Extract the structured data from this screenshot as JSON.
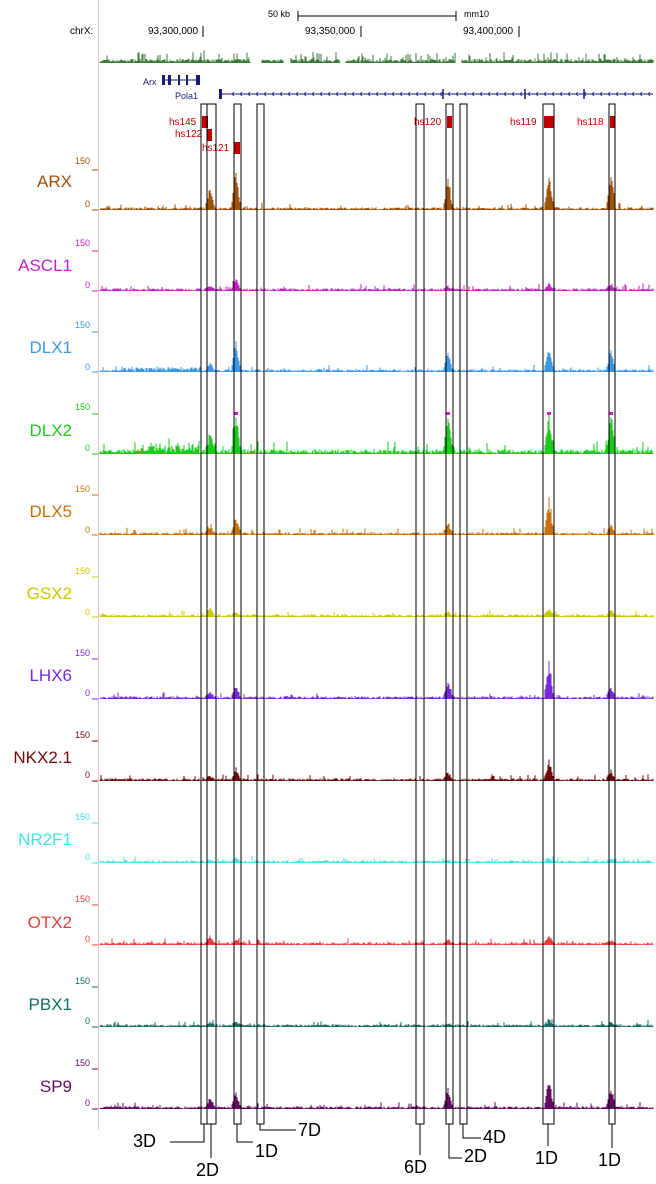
{
  "header": {
    "scale_label": "50 kb",
    "assembly": "mm10",
    "chrom_label": "chrX:",
    "coordinates": [
      {
        "label": "93,300,000",
        "pos": 93300000
      },
      {
        "label": "93,350,000",
        "pos": 93350000
      },
      {
        "label": "93,400,000",
        "pos": 93400000
      }
    ]
  },
  "genes": [
    {
      "name": "Arx"
    },
    {
      "name": "Pola1"
    }
  ],
  "enhancers": [
    {
      "name": "hs145",
      "color": "#c00000"
    },
    {
      "name": "hs122",
      "color": "#c00000"
    },
    {
      "name": "hs121",
      "color": "#c00000"
    },
    {
      "name": "hs120",
      "color": "#c00000"
    },
    {
      "name": "hs119",
      "color": "#c00000"
    },
    {
      "name": "hs118",
      "color": "#c00000"
    }
  ],
  "tracks": [
    {
      "name": "ARX",
      "color": "#a0520a",
      "max_label": "150",
      "min_label": "0"
    },
    {
      "name": "ASCL1",
      "color": "#c81ec8",
      "max_label": "150",
      "min_label": "0"
    },
    {
      "name": "DLX1",
      "color": "#3c96e6",
      "max_label": "150",
      "min_label": "0"
    },
    {
      "name": "DLX2",
      "color": "#1ec81e",
      "max_label": "150",
      "min_label": "0"
    },
    {
      "name": "DLX5",
      "color": "#c8700a",
      "max_label": "150",
      "min_label": "0"
    },
    {
      "name": "GSX2",
      "color": "#c8c800",
      "max_label": "150",
      "min_label": "0"
    },
    {
      "name": "LHX6",
      "color": "#7828dc",
      "max_label": "150",
      "min_label": "0"
    },
    {
      "name": "NKX2.1",
      "color": "#6e0a0a",
      "max_label": "150",
      "min_label": "0"
    },
    {
      "name": "NR2F1",
      "color": "#3ce6e6",
      "max_label": "150",
      "min_label": "0"
    },
    {
      "name": "OTX2",
      "color": "#e63c3c",
      "max_label": "150",
      "min_label": "0"
    },
    {
      "name": "PBX1",
      "color": "#146e64",
      "max_label": "150",
      "min_label": "0"
    },
    {
      "name": "SP9",
      "color": "#640a64",
      "max_label": "150",
      "min_label": "0"
    }
  ],
  "regions": [
    {
      "label": "3D"
    },
    {
      "label": "2D"
    },
    {
      "label": "1D"
    },
    {
      "label": "7D"
    },
    {
      "label": "6D"
    },
    {
      "label": "2D"
    },
    {
      "label": "4D"
    },
    {
      "label": "1D"
    },
    {
      "label": "1D"
    }
  ],
  "colors": {
    "conservation": "#3c7a3c",
    "gene": "#1a1a7a",
    "enhancer": "#c00000",
    "box": "#000000"
  }
}
